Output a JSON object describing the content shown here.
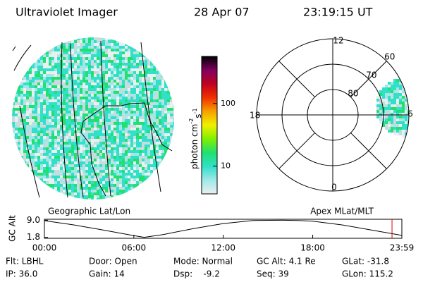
{
  "header": {
    "instrument": "Ultraviolet Imager",
    "date": "28 Apr 07",
    "time": "23:19:15 UT"
  },
  "colorbar": {
    "label": "photon cm",
    "exp1": "-2",
    "unit2": "s",
    "exp2": "-1",
    "ylim": [
      3.6,
      565
    ],
    "yticks": [
      10,
      100
    ],
    "log": true,
    "colors": [
      "#e8f0f0",
      "#a0e8e8",
      "#30e0c8",
      "#20e070",
      "#80f000",
      "#f0f000",
      "#f8a000",
      "#f03000",
      "#c00020",
      "#800060",
      "#000000"
    ]
  },
  "polar": {
    "rings": [
      80,
      70,
      60
    ],
    "outer": 60,
    "hours": [
      "12",
      "18",
      "0",
      "6"
    ]
  },
  "chart_data": {
    "type": "line",
    "ylabel": "GC Alt",
    "left_title": "Geographic Lat/Lon",
    "right_title": "Apex MLat/MLT",
    "x": [
      0,
      2,
      4,
      6,
      6.7,
      8,
      10,
      12,
      14,
      16,
      17,
      18,
      20,
      22,
      23.98
    ],
    "values": [
      8.8,
      7.0,
      4.8,
      2.5,
      1.8,
      3.0,
      5.5,
      7.6,
      8.9,
      9.0,
      8.9,
      8.6,
      7.0,
      4.8,
      2.6
    ],
    "color": "#000000",
    "marker_x": 23.32,
    "marker_color": "#e00000",
    "xlim": [
      0,
      23.98
    ],
    "ylim": [
      1.4,
      9.4
    ],
    "xticks": [
      {
        "value": 0,
        "label": "00:00"
      },
      {
        "value": 6,
        "label": "06:00"
      },
      {
        "value": 12,
        "label": "12:00"
      },
      {
        "value": 18,
        "label": "18:00"
      },
      {
        "value": 23.98,
        "label": "23:59"
      }
    ],
    "yticks": [
      {
        "value": 9.0,
        "label": "9.0"
      },
      1.8
    ]
  },
  "footer": [
    [
      "Flt: LBHL",
      "Door: Open",
      "Mode: Normal",
      "GC Alt: 4.1 Re",
      "GLat: -31.8"
    ],
    [
      "IP: 36.0",
      "Gain: 14",
      "Dsp:    -9.2",
      "Seq: 39",
      "GLon: 115.2"
    ]
  ]
}
